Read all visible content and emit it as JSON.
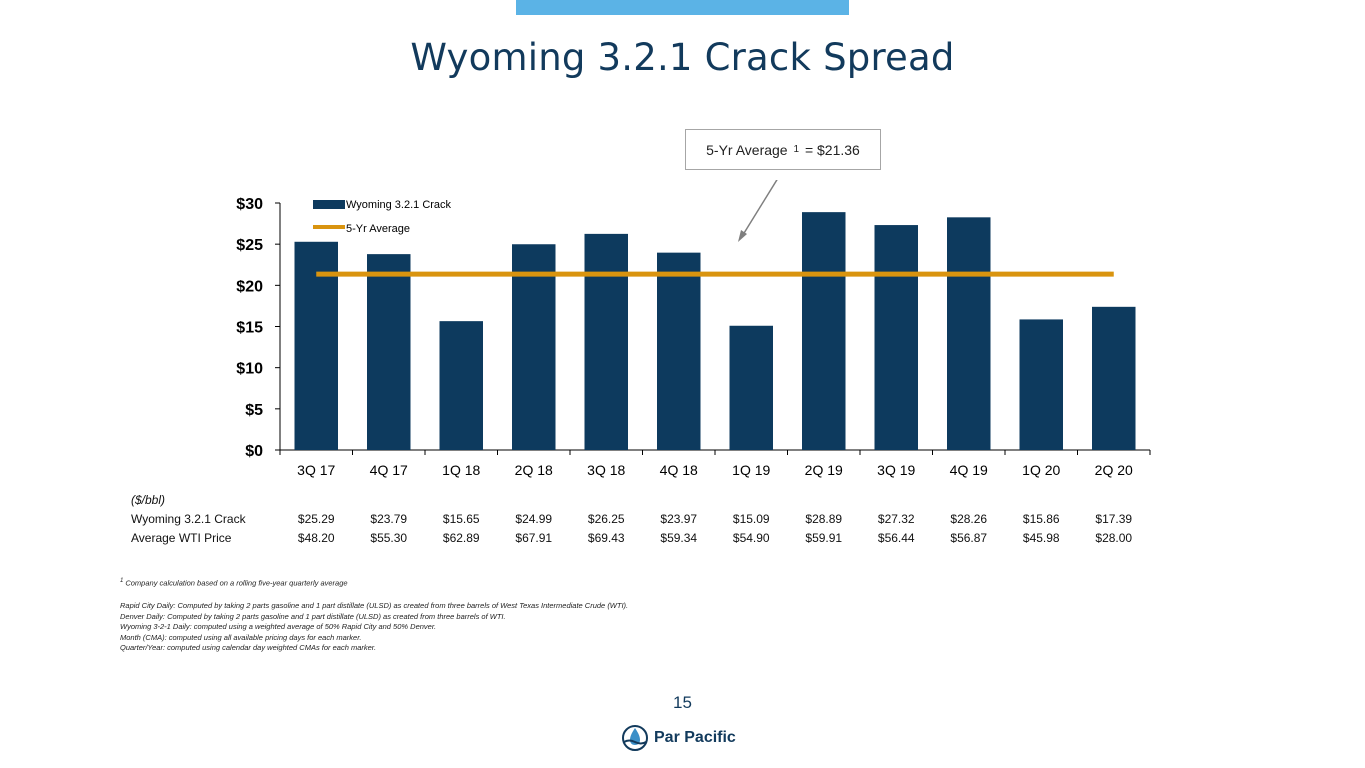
{
  "slide": {
    "title": "Wyoming 3.2.1 Crack Spread",
    "page_number": "15",
    "brand": "Par Pacific"
  },
  "callout": {
    "text_before": "5-Yr Average",
    "superscript": "1",
    "text_after": "= $21.36"
  },
  "chart_data": {
    "type": "bar",
    "categories": [
      "3Q 17",
      "4Q 17",
      "1Q 18",
      "2Q 18",
      "3Q 18",
      "4Q 18",
      "1Q 19",
      "2Q 19",
      "3Q 19",
      "4Q 19",
      "1Q 20",
      "2Q 20"
    ],
    "series": [
      {
        "name": "Wyoming 3.2.1 Crack",
        "type": "bar",
        "values": [
          25.29,
          23.79,
          15.65,
          24.99,
          26.25,
          23.97,
          15.09,
          28.89,
          27.32,
          28.26,
          15.86,
          17.39
        ]
      },
      {
        "name": "5-Yr Average",
        "type": "line",
        "value": 21.36
      }
    ],
    "ylim": [
      0,
      30
    ],
    "yticks": [
      0,
      5,
      10,
      15,
      20,
      25,
      30
    ],
    "ytick_labels": [
      "$0",
      "$5",
      "$10",
      "$15",
      "$20",
      "$25",
      "$30"
    ],
    "legend_position": "top-left",
    "grid": false,
    "colors": {
      "bar": "#0d3a5e",
      "line": "#d9940f"
    }
  },
  "table": {
    "unit": "($/bbl)",
    "rows": [
      {
        "label": "Wyoming 3.2.1 Crack",
        "values": [
          "$25.29",
          "$23.79",
          "$15.65",
          "$24.99",
          "$26.25",
          "$23.97",
          "$15.09",
          "$28.89",
          "$27.32",
          "$28.26",
          "$15.86",
          "$17.39"
        ]
      },
      {
        "label": "Average WTI Price",
        "values": [
          "$48.20",
          "$55.30",
          "$62.89",
          "$67.91",
          "$69.43",
          "$59.34",
          "$54.90",
          "$59.91",
          "$56.44",
          "$56.87",
          "$45.98",
          "$28.00"
        ]
      }
    ]
  },
  "footnote": {
    "marker": "1",
    "text": "Company calculation based on a rolling five-year quarterly average"
  },
  "notes": [
    "Rapid City Daily: Computed by taking 2 parts gasoline and 1 part distillate (ULSD) as created from three barrels of West Texas Intermediate Crude (WTI).",
    "Denver Daily: Computed by taking 2 parts gasoline and 1 part distillate (ULSD) as created from three barrels of WTI.",
    "Wyoming 3-2-1 Daily: computed using a weighted average of 50% Rapid City and 50% Denver.",
    "Month (CMA): computed using all available pricing days for each marker.",
    "Quarter/Year: computed using calendar day weighted CMAs for each marker."
  ]
}
